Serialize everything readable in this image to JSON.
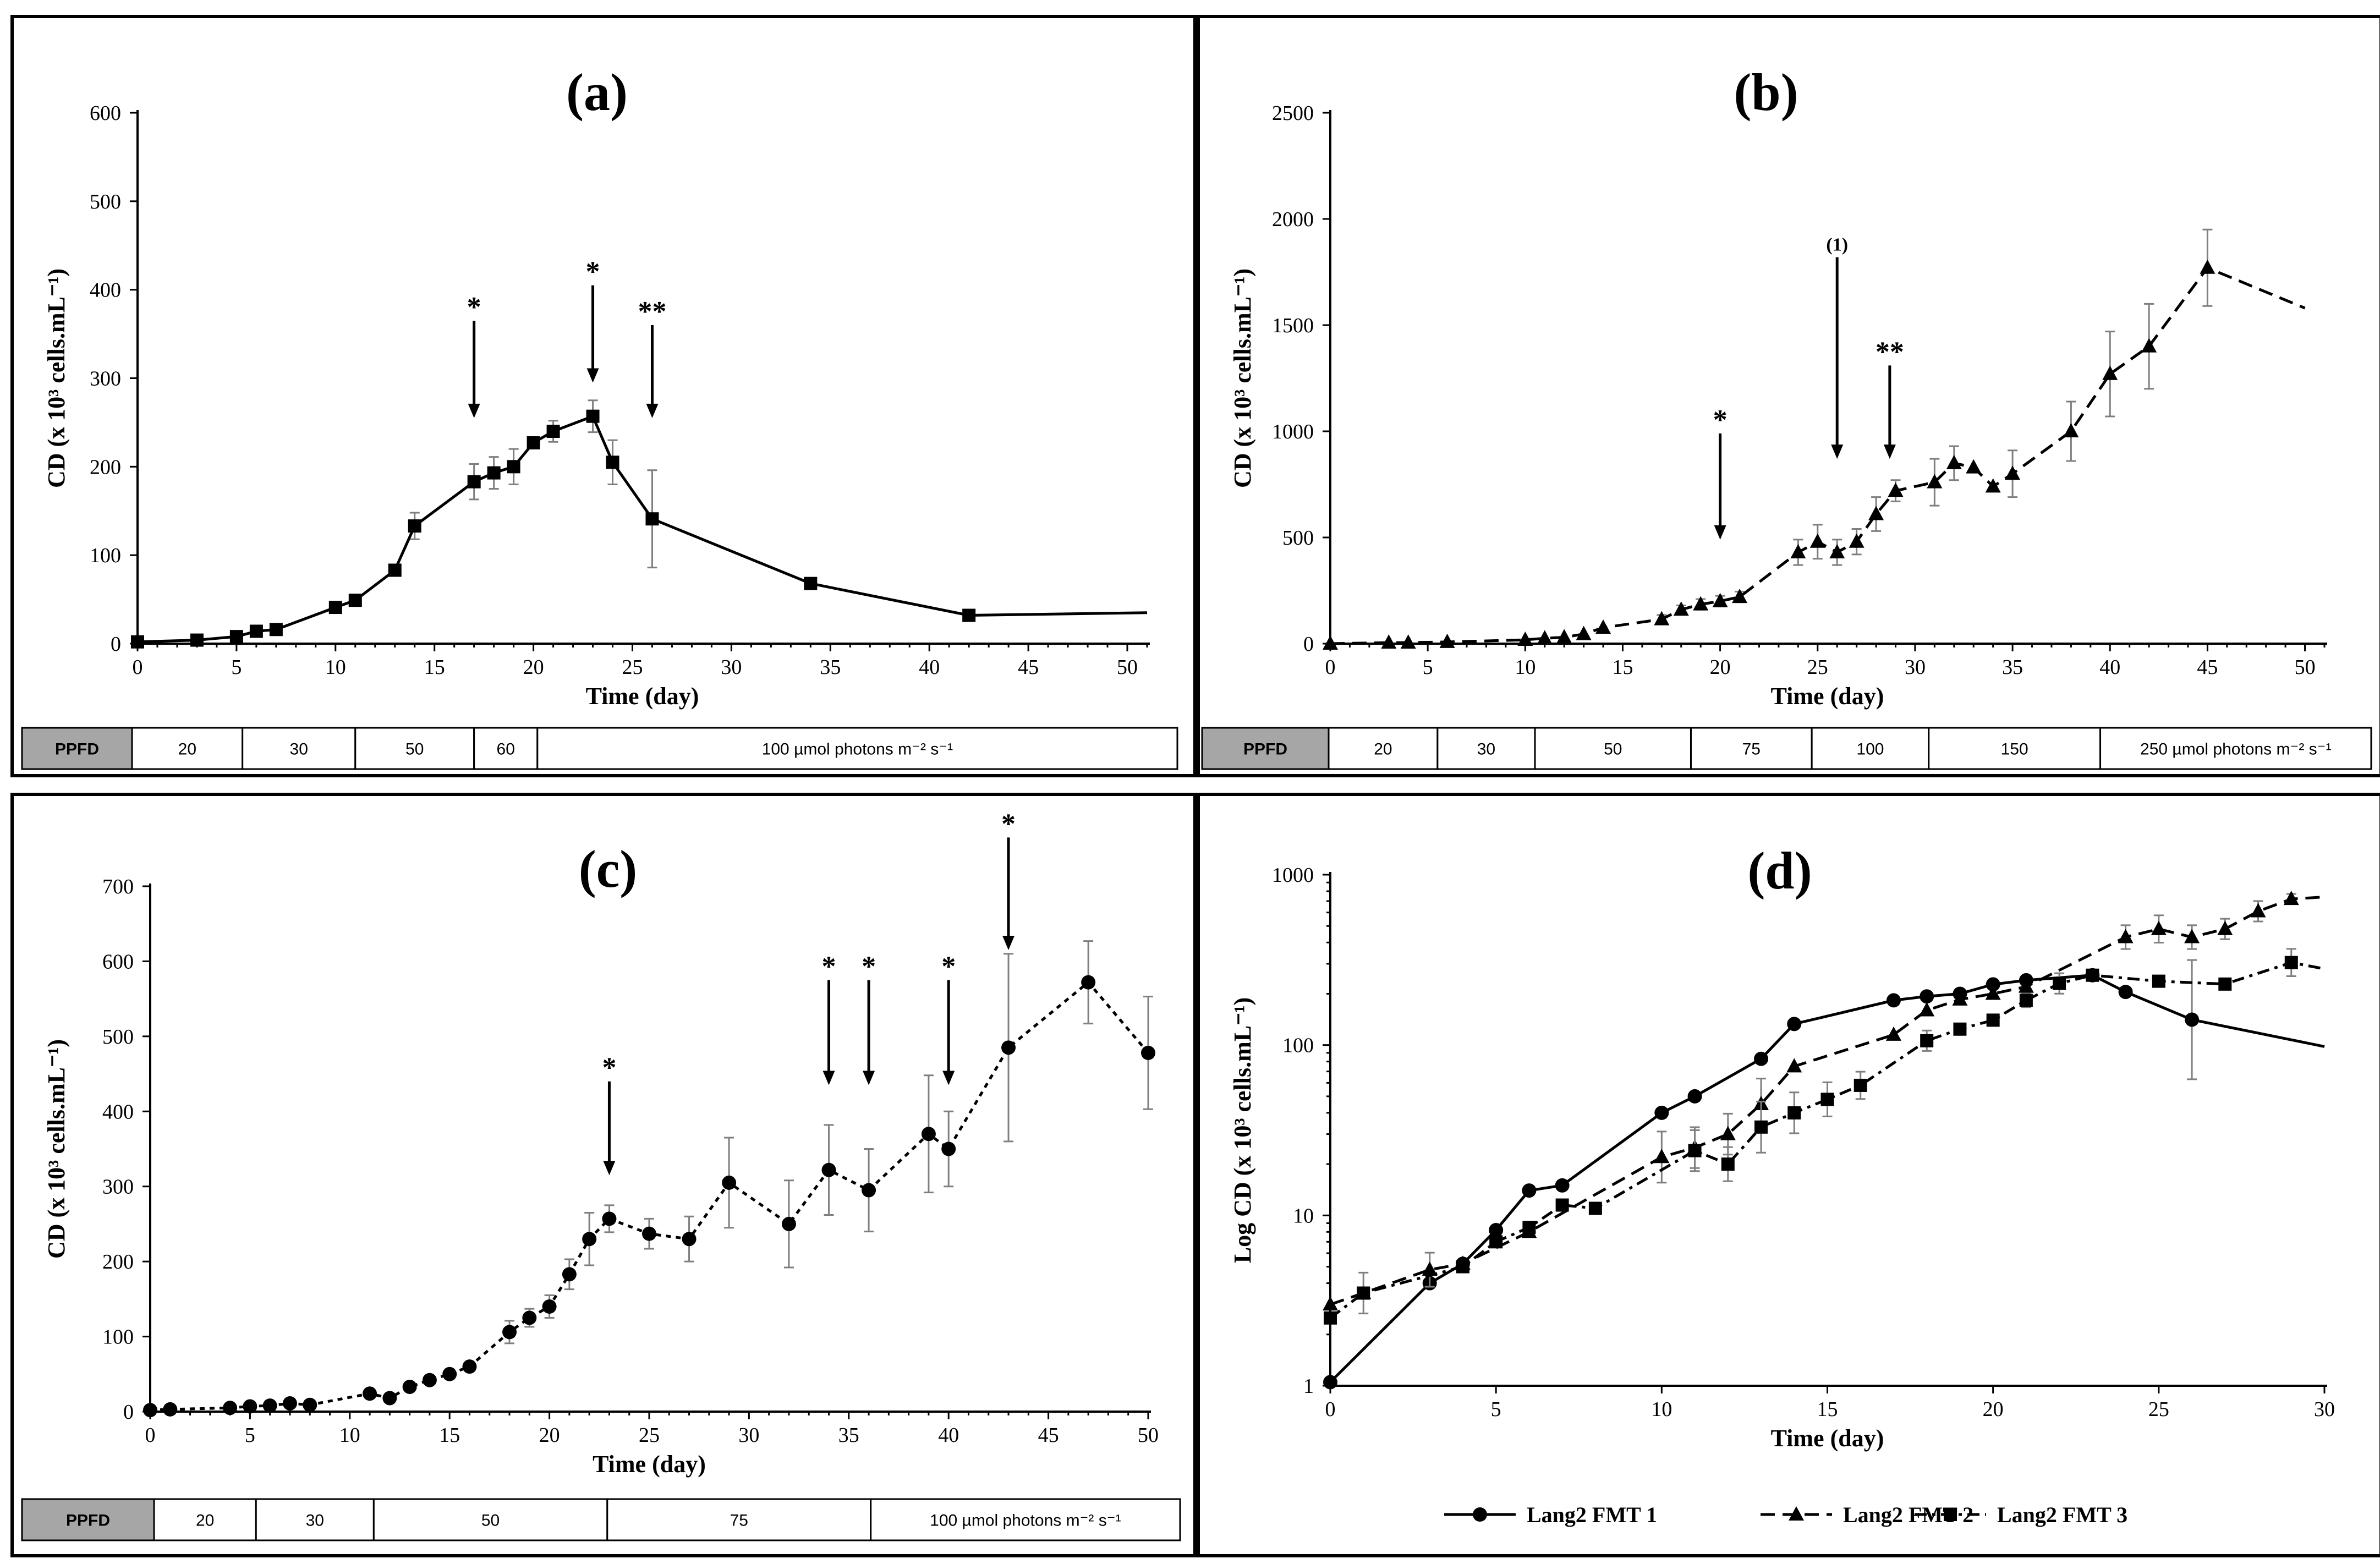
{
  "chart_data": [
    {
      "id": "a",
      "type": "line",
      "title": "(a)",
      "xlabel": "Time (day)",
      "ylabel": "CD (x 10³ cells.mL⁻¹)",
      "xlim": [
        0,
        51
      ],
      "ylim": [
        0,
        600
      ],
      "scale": "linear",
      "xticks": [
        0,
        5,
        10,
        15,
        20,
        25,
        30,
        35,
        40,
        45,
        50
      ],
      "yticks": [
        0,
        100,
        200,
        300,
        400,
        500,
        600
      ],
      "series": [
        {
          "name": "CD",
          "marker": "square",
          "dash": "solid",
          "x": [
            0,
            3,
            5,
            6,
            7,
            10,
            11,
            13,
            14,
            17,
            18,
            19,
            20,
            21,
            23,
            24,
            26,
            34,
            42,
            51
          ],
          "y": [
            2,
            4,
            8,
            14,
            16,
            41,
            49,
            83,
            133,
            183,
            193,
            200,
            227,
            240,
            257,
            205,
            141,
            68,
            32,
            35
          ],
          "err": [
            0,
            0,
            0,
            0,
            0,
            0,
            0,
            0,
            15,
            20,
            18,
            20,
            0,
            12,
            18,
            25,
            55,
            0,
            0,
            0
          ],
          "show_marker": [
            true,
            true,
            true,
            true,
            true,
            true,
            true,
            true,
            true,
            true,
            true,
            true,
            true,
            true,
            true,
            true,
            true,
            true,
            true,
            false
          ]
        }
      ],
      "arrows": [
        {
          "x": 17,
          "y_top": 365,
          "y_tip": 255,
          "label": "*"
        },
        {
          "x": 23,
          "y_top": 405,
          "y_tip": 295,
          "label": "*"
        },
        {
          "x": 26,
          "y_top": 360,
          "y_tip": 255,
          "label": "**"
        }
      ],
      "ppfd": {
        "header": "PPFD",
        "segments": [
          {
            "label": "20",
            "to": 5.3
          },
          {
            "label": "30",
            "to": 11
          },
          {
            "label": "50",
            "to": 17
          },
          {
            "label": "60",
            "to": 20.2
          },
          {
            "label": "100 µmol photons m⁻² s⁻¹",
            "to": 52.5
          }
        ]
      }
    },
    {
      "id": "b",
      "type": "line",
      "title": "(b)",
      "xlabel": "Time (day)",
      "ylabel": "CD (x 10³ cells.mL⁻¹)",
      "xlim": [
        0,
        51
      ],
      "ylim": [
        0,
        2500
      ],
      "scale": "linear",
      "xticks": [
        0,
        5,
        10,
        15,
        20,
        25,
        30,
        35,
        40,
        45,
        50
      ],
      "yticks": [
        0,
        500,
        1000,
        1500,
        2000,
        2500
      ],
      "series": [
        {
          "name": "CD",
          "marker": "triangle",
          "dash": "dashed",
          "x": [
            0,
            3,
            4,
            6,
            10,
            11,
            12,
            13,
            14,
            17,
            18,
            19,
            20,
            21,
            24,
            25,
            26,
            27,
            28,
            29,
            31,
            32,
            33,
            34,
            35,
            38,
            40,
            42,
            45,
            50
          ],
          "y": [
            0,
            5,
            5,
            8,
            18,
            25,
            30,
            45,
            75,
            115,
            160,
            185,
            200,
            220,
            430,
            480,
            430,
            480,
            610,
            720,
            760,
            850,
            830,
            740,
            800,
            1000,
            1270,
            1400,
            1770,
            1580
          ],
          "err": [
            0,
            0,
            0,
            0,
            0,
            0,
            0,
            0,
            0,
            20,
            20,
            25,
            25,
            25,
            60,
            80,
            60,
            60,
            80,
            50,
            110,
            80,
            0,
            0,
            110,
            140,
            200,
            200,
            180,
            0
          ],
          "show_marker": [
            true,
            true,
            true,
            true,
            true,
            true,
            true,
            true,
            true,
            true,
            true,
            true,
            true,
            true,
            true,
            true,
            true,
            true,
            true,
            true,
            true,
            true,
            true,
            true,
            true,
            true,
            true,
            true,
            true,
            false
          ]
        }
      ],
      "arrows": [
        {
          "x": 20,
          "y_top": 990,
          "y_tip": 490,
          "label": "*"
        },
        {
          "x": 26,
          "y_top": 1820,
          "y_tip": 870,
          "label": "(1)",
          "small": true
        },
        {
          "x": 28.7,
          "y_top": 1310,
          "y_tip": 870,
          "label": "**"
        }
      ],
      "ppfd": {
        "header": "PPFD",
        "segments": [
          {
            "label": "20",
            "to": 5.5
          },
          {
            "label": "30",
            "to": 10.5
          },
          {
            "label": "50",
            "to": 18.5
          },
          {
            "label": "75",
            "to": 24.7
          },
          {
            "label": "100",
            "to": 30.7
          },
          {
            "label": "150",
            "to": 39.5
          },
          {
            "label": "250 µmol photons m⁻² s⁻¹",
            "to": 51.3
          }
        ]
      }
    },
    {
      "id": "c",
      "type": "line",
      "title": "(c)",
      "xlabel": "Time (day)",
      "ylabel": "CD (x 10³ cells.mL⁻¹)",
      "xlim": [
        0,
        50
      ],
      "ylim": [
        0,
        700
      ],
      "scale": "linear",
      "xticks": [
        0,
        5,
        10,
        15,
        20,
        25,
        30,
        35,
        40,
        45,
        50
      ],
      "yticks": [
        0,
        100,
        200,
        300,
        400,
        500,
        600,
        700
      ],
      "series": [
        {
          "name": "CD",
          "marker": "circle",
          "dash": "dotted",
          "x": [
            0,
            1,
            4,
            5,
            6,
            7,
            8,
            11,
            12,
            13,
            14,
            15,
            16,
            18,
            19,
            20,
            21,
            22,
            23,
            25,
            27,
            29,
            32,
            34,
            36,
            39,
            40,
            43,
            47,
            50
          ],
          "y": [
            2,
            3,
            5,
            7,
            8,
            11,
            9,
            24,
            18,
            33,
            42,
            50,
            60,
            106,
            125,
            140,
            183,
            230,
            257,
            237,
            230,
            305,
            250,
            322,
            295,
            370,
            350,
            485,
            572,
            478
          ],
          "err": [
            0,
            0,
            0,
            0,
            0,
            0,
            0,
            0,
            0,
            0,
            0,
            0,
            0,
            15,
            12,
            15,
            20,
            35,
            18,
            20,
            30,
            60,
            58,
            60,
            55,
            78,
            50,
            125,
            55,
            75
          ],
          "show_marker": [
            true,
            true,
            true,
            true,
            true,
            true,
            true,
            true,
            true,
            true,
            true,
            true,
            true,
            true,
            true,
            true,
            true,
            true,
            true,
            true,
            true,
            true,
            true,
            true,
            true,
            true,
            true,
            true,
            true,
            true
          ]
        }
      ],
      "arrows": [
        {
          "x": 23,
          "y_top": 440,
          "y_tip": 315,
          "label": "*"
        },
        {
          "x": 34,
          "y_top": 575,
          "y_tip": 435,
          "label": "*"
        },
        {
          "x": 36,
          "y_top": 575,
          "y_tip": 435,
          "label": "*"
        },
        {
          "x": 40,
          "y_top": 575,
          "y_tip": 435,
          "label": "*"
        },
        {
          "x": 43,
          "y_top": 765,
          "y_tip": 615,
          "label": "*"
        }
      ],
      "ppfd": {
        "header": "PPFD",
        "segments": [
          {
            "label": "20",
            "to": 5.3
          },
          {
            "label": "30",
            "to": 11.2
          },
          {
            "label": "50",
            "to": 22.9
          },
          {
            "label": "75",
            "to": 36.1
          },
          {
            "label": "100 µmol photons m⁻² s⁻¹",
            "to": 51.6
          }
        ]
      }
    },
    {
      "id": "d",
      "type": "line",
      "title": "(d)",
      "xlabel": "Time (day)",
      "ylabel": "Log CD (x 10³ cells.mL⁻¹)",
      "xlim": [
        0,
        30
      ],
      "ylim": [
        1,
        1000
      ],
      "scale": "log",
      "xticks": [
        0,
        5,
        10,
        15,
        20,
        25,
        30
      ],
      "yticks": [
        1,
        10,
        100,
        1000
      ],
      "series": [
        {
          "name": "Lang2 FMT 1",
          "marker": "circle",
          "dash": "solid",
          "x": [
            0,
            3,
            4,
            5,
            6,
            7,
            10,
            11,
            13,
            14,
            17,
            18,
            19,
            20,
            21,
            23,
            24,
            26,
            30
          ],
          "y": [
            1.05,
            4,
            5.2,
            8.2,
            14,
            15,
            40,
            50,
            83,
            133,
            183,
            193,
            200,
            227,
            240,
            257,
            205,
            141,
            98
          ],
          "err": [
            0,
            0,
            0,
            0,
            0,
            0,
            0,
            0,
            0,
            0,
            0,
            0,
            0,
            0,
            0,
            0,
            0,
            0.35,
            0
          ],
          "show_marker": [
            true,
            true,
            true,
            true,
            true,
            true,
            true,
            true,
            true,
            true,
            true,
            true,
            true,
            true,
            true,
            true,
            true,
            true,
            false
          ]
        },
        {
          "name": "Lang2 FMT 2",
          "marker": "triangle",
          "dash": "dashed",
          "x": [
            0,
            1,
            3,
            4,
            6,
            10,
            11,
            12,
            13,
            14,
            17,
            18,
            19,
            20,
            21,
            24,
            25,
            26,
            27,
            28,
            29,
            30
          ],
          "y": [
            3,
            3.5,
            4.8,
            5.2,
            8,
            22,
            25,
            30,
            45,
            75,
            115,
            160,
            185,
            200,
            220,
            430,
            480,
            430,
            480,
            610,
            720,
            740
          ],
          "err": [
            0,
            0,
            0.1,
            0,
            0,
            0.15,
            0.12,
            0.12,
            0.15,
            0,
            0,
            0,
            0,
            0,
            0,
            0.07,
            0.08,
            0.07,
            0.06,
            0.06,
            0.03,
            0
          ],
          "show_marker": [
            true,
            true,
            true,
            true,
            true,
            true,
            true,
            true,
            true,
            true,
            true,
            true,
            true,
            true,
            true,
            true,
            true,
            true,
            true,
            true,
            true,
            false
          ]
        },
        {
          "name": "Lang2 FMT 3",
          "marker": "square",
          "dash": "dashdot",
          "x": [
            0,
            1,
            4,
            5,
            6,
            7,
            8,
            11,
            12,
            13,
            14,
            15,
            16,
            18,
            19,
            20,
            21,
            22,
            23,
            25,
            27,
            29,
            30
          ],
          "y": [
            2.5,
            3.5,
            5,
            7,
            8.5,
            11.5,
            11,
            24,
            20,
            33,
            40,
            48,
            58,
            106,
            124,
            140,
            183,
            230,
            257,
            237,
            228,
            305,
            280
          ],
          "err": [
            0,
            0.12,
            0,
            0,
            0,
            0,
            0,
            0.12,
            0.1,
            0.15,
            0.12,
            0.1,
            0.08,
            0.06,
            0,
            0,
            0.04,
            0.06,
            0.03,
            0,
            0.03,
            0.08,
            0
          ],
          "show_marker": [
            true,
            true,
            true,
            true,
            true,
            true,
            true,
            true,
            true,
            true,
            true,
            true,
            true,
            true,
            true,
            true,
            true,
            true,
            true,
            true,
            true,
            true,
            false
          ]
        }
      ],
      "legend": {
        "position": "bottom",
        "entries": [
          "Lang2 FMT 1",
          "Lang2 FMT 2",
          "Lang2 FMT 3"
        ]
      }
    }
  ]
}
